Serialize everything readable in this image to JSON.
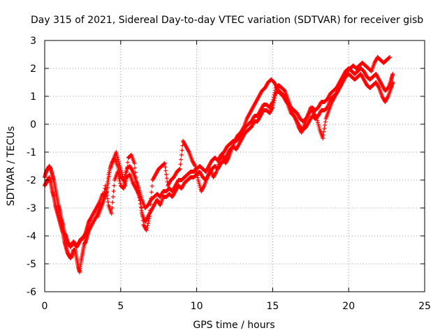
{
  "chart_data": {
    "type": "scatter",
    "title": "Day 315 of 2021, Sidereal Day-to-day VTEC variation (SDTVAR) for receiver gisb",
    "xlabel": "GPS time / hours",
    "ylabel": "SDTVAR / TECUs",
    "xlim": [
      0,
      25
    ],
    "ylim": [
      -6,
      3
    ],
    "xticks": [
      0,
      5,
      10,
      15,
      20,
      25
    ],
    "yticks": [
      -6,
      -5,
      -4,
      -3,
      -2,
      -1,
      0,
      1,
      2,
      3
    ],
    "grid": true,
    "marker": "+",
    "color": "#ff0000",
    "series": [
      {
        "x": [
          0.0,
          0.1,
          0.2,
          0.3,
          0.4,
          0.5,
          0.6,
          0.7,
          0.8,
          0.9,
          1.0,
          1.1,
          1.2,
          1.3,
          1.4,
          1.5,
          1.6,
          1.7,
          1.8,
          1.9,
          2.0,
          2.1,
          2.2,
          2.3,
          2.4,
          2.5,
          2.6,
          2.7,
          2.8,
          2.9,
          3.0,
          3.2,
          3.4,
          3.6,
          3.8,
          4.0,
          4.2,
          4.4,
          4.6,
          4.8,
          5.0,
          5.2,
          5.4,
          5.6,
          5.8,
          6.0,
          6.2,
          6.4,
          6.6,
          6.8,
          7.0,
          7.2,
          7.4,
          7.6,
          7.8,
          8.0,
          8.2,
          8.4,
          8.6,
          8.8,
          9.0,
          9.2,
          9.4,
          9.6,
          9.8,
          10.0,
          10.2,
          10.4,
          10.6,
          10.8,
          11.0,
          11.2,
          11.4,
          11.6,
          11.8,
          12.0,
          12.2,
          12.4,
          12.6,
          12.8,
          13.0,
          13.2,
          13.4,
          13.6,
          13.8,
          14.0,
          14.2,
          14.4,
          14.6,
          14.8,
          15.0,
          15.2,
          15.4,
          15.6,
          15.8,
          16.0,
          16.2,
          16.4,
          16.6,
          16.8,
          17.0,
          17.2,
          17.4,
          17.6,
          17.8,
          18.0,
          18.2,
          18.4,
          18.6,
          18.8,
          19.0,
          19.2,
          19.4,
          19.6,
          19.8,
          20.0,
          20.2,
          20.4,
          20.6,
          20.8,
          21.0,
          21.2,
          21.4,
          21.6,
          21.8,
          22.0,
          22.2,
          22.4,
          22.6,
          22.8,
          22.9
        ],
        "y": [
          -1.9,
          -1.7,
          -1.6,
          -1.5,
          -1.6,
          -1.8,
          -2.0,
          -2.3,
          -2.6,
          -2.9,
          -3.1,
          -3.4,
          -3.6,
          -3.9,
          -4.0,
          -4.2,
          -4.3,
          -4.4,
          -4.3,
          -4.2,
          -4.3,
          -4.4,
          -4.3,
          -4.2,
          -4.1,
          -4.1,
          -4.0,
          -3.9,
          -3.7,
          -3.5,
          -3.4,
          -3.2,
          -3.0,
          -2.8,
          -2.5,
          -2.6,
          -1.8,
          -1.4,
          -1.2,
          -1.5,
          -1.9,
          -2.0,
          -1.6,
          -1.5,
          -1.7,
          -2.0,
          -2.3,
          -2.7,
          -3.0,
          -2.9,
          -2.7,
          -2.6,
          -2.5,
          -2.6,
          -2.4,
          -2.4,
          -2.3,
          -2.4,
          -2.2,
          -2.0,
          -2.0,
          -1.9,
          -1.8,
          -1.7,
          -1.7,
          -1.6,
          -1.5,
          -1.6,
          -1.7,
          -1.5,
          -1.3,
          -1.2,
          -1.3,
          -1.1,
          -1.0,
          -0.8,
          -0.7,
          -0.6,
          -0.6,
          -0.5,
          -0.3,
          -0.1,
          0.0,
          0.1,
          0.3,
          0.3,
          0.5,
          0.7,
          0.7,
          0.6,
          0.8,
          1.3,
          1.4,
          1.3,
          1.2,
          0.9,
          0.6,
          0.5,
          0.4,
          0.2,
          0.1,
          0.2,
          0.4,
          0.6,
          0.5,
          0.6,
          0.8,
          0.8,
          0.9,
          1.1,
          1.2,
          1.3,
          1.5,
          1.7,
          1.9,
          2.0,
          1.9,
          1.8,
          1.9,
          2.0,
          1.9,
          1.7,
          1.6,
          1.7,
          1.8,
          1.6,
          1.4,
          1.2,
          1.3,
          1.6,
          1.8
        ]
      },
      {
        "x": [
          0.0,
          0.1,
          0.2,
          0.3,
          0.4,
          0.5,
          0.6,
          0.7,
          0.8,
          0.9,
          1.0,
          1.1,
          1.2,
          1.3,
          1.4,
          1.5,
          1.6,
          1.7,
          1.8,
          1.9,
          2.0,
          2.1,
          2.2,
          2.3,
          2.4,
          2.5,
          2.6,
          2.7,
          2.8,
          2.9,
          3.0,
          3.2,
          3.4,
          3.6,
          3.8,
          4.0,
          4.2,
          4.4,
          4.6,
          4.8,
          5.0,
          5.2,
          5.4,
          5.6,
          5.8,
          6.0,
          6.2,
          6.4,
          6.6,
          6.8,
          7.0,
          7.2,
          7.4,
          7.6,
          7.8,
          8.0,
          8.2,
          8.4,
          8.6,
          8.8,
          9.0,
          9.2,
          9.4,
          9.6,
          9.8,
          10.0,
          10.2,
          10.4,
          10.6,
          10.8,
          11.0,
          11.2,
          11.4,
          11.6,
          11.8,
          12.0,
          12.2,
          12.4,
          12.6,
          12.8,
          13.0,
          13.2,
          13.4,
          13.6,
          13.8,
          14.0,
          14.2,
          14.4,
          14.6,
          14.8,
          15.0,
          15.2,
          15.4,
          15.6,
          15.8,
          16.0,
          16.2,
          16.4,
          16.6,
          16.8,
          17.0,
          17.2,
          17.4,
          17.6,
          17.8,
          18.0,
          18.2,
          18.4,
          18.6,
          18.8,
          19.0,
          19.2,
          19.4,
          19.6,
          19.8,
          20.0,
          20.2,
          20.4,
          20.6,
          20.8,
          21.0,
          21.2,
          21.4,
          21.6,
          21.8,
          22.0,
          22.2,
          22.4,
          22.6,
          22.8,
          22.9
        ],
        "y": [
          -2.2,
          -2.1,
          -2.0,
          -1.9,
          -2.1,
          -2.4,
          -2.6,
          -2.9,
          -3.1,
          -3.3,
          -3.5,
          -3.7,
          -3.9,
          -4.2,
          -4.4,
          -4.6,
          -4.7,
          -4.8,
          -4.7,
          -4.5,
          -4.5,
          -4.8,
          -5.1,
          -5.3,
          -4.9,
          -4.6,
          -4.3,
          -4.2,
          -4.0,
          -3.8,
          -3.7,
          -3.5,
          -3.3,
          -3.0,
          -2.8,
          -2.2,
          -2.9,
          -3.2,
          -2.0,
          -1.7,
          -2.2,
          -2.3,
          -1.9,
          -1.8,
          -2.1,
          -2.3,
          -2.5,
          -3.2,
          -3.5,
          -3.3,
          -3.1,
          -2.9,
          -2.7,
          -2.9,
          -2.6,
          -2.6,
          -2.5,
          -2.6,
          -2.4,
          -2.2,
          -2.3,
          -2.1,
          -2.0,
          -1.9,
          -1.9,
          -1.8,
          -1.7,
          -1.9,
          -2.0,
          -1.8,
          -1.6,
          -1.5,
          -1.6,
          -1.4,
          -1.3,
          -1.1,
          -0.9,
          -0.8,
          -0.9,
          -0.7,
          -0.5,
          -0.3,
          -0.2,
          -0.1,
          0.1,
          0.1,
          0.3,
          0.5,
          0.5,
          0.4,
          0.6,
          1.1,
          1.2,
          1.1,
          1.0,
          0.7,
          0.4,
          0.3,
          0.1,
          -0.1,
          -0.2,
          -0.1,
          0.1,
          0.3,
          0.2,
          0.3,
          0.5,
          0.5,
          0.6,
          0.9,
          1.0,
          1.1,
          1.3,
          1.5,
          1.7,
          1.8,
          1.7,
          1.6,
          1.7,
          1.8,
          1.6,
          1.4,
          1.3,
          1.4,
          1.5,
          1.3,
          1.0,
          0.8,
          1.0,
          1.3,
          1.5
        ]
      },
      {
        "x": [
          3.5,
          3.7,
          3.9,
          4.1,
          4.3,
          4.5,
          4.7,
          4.9,
          5.1,
          5.3,
          5.5,
          5.7,
          5.9,
          6.1,
          6.3,
          6.5,
          6.7,
          6.9,
          7.1,
          7.3,
          7.5,
          7.7,
          7.9,
          8.1,
          8.3,
          8.5,
          8.7,
          8.9,
          9.1,
          9.3,
          9.5,
          9.7,
          9.9,
          10.1,
          10.3,
          10.5,
          10.7,
          10.9,
          11.1,
          11.3,
          11.5,
          11.7,
          11.9,
          12.1,
          12.3,
          12.5,
          12.7,
          12.9,
          13.1,
          13.3,
          13.5,
          13.7,
          13.9,
          14.1,
          14.3,
          14.5,
          14.7,
          14.9,
          15.1,
          15.3,
          15.5,
          15.7,
          15.9,
          16.1,
          16.3,
          16.5,
          16.7,
          16.9,
          17.1,
          17.3,
          17.5,
          17.7,
          17.9,
          18.1,
          18.3,
          18.5,
          18.7,
          18.9,
          19.1,
          19.3,
          19.5,
          19.7,
          19.9,
          20.1,
          20.3,
          20.5,
          20.7,
          20.9,
          21.1,
          21.3,
          21.5,
          21.7,
          21.9,
          22.1,
          22.3,
          22.5,
          22.7
        ],
        "y": [
          -3.3,
          -3.0,
          -2.7,
          -2.4,
          -1.6,
          -1.3,
          -1.0,
          -1.4,
          -1.8,
          -2.2,
          -1.2,
          -1.1,
          -1.4,
          -2.4,
          -2.7,
          -3.6,
          -3.8,
          -3.3,
          -2.0,
          -1.8,
          -1.6,
          -1.5,
          -1.4,
          -2.2,
          -2.0,
          -1.9,
          -1.7,
          -1.6,
          -0.6,
          -0.8,
          -1.0,
          -1.3,
          -1.5,
          -2.0,
          -2.4,
          -2.2,
          -1.9,
          -1.6,
          -1.9,
          -1.7,
          -1.3,
          -1.1,
          -1.4,
          -1.2,
          -0.9,
          -0.6,
          -0.4,
          -0.3,
          -0.1,
          0.2,
          0.4,
          0.6,
          0.8,
          1.0,
          1.2,
          1.3,
          1.5,
          1.6,
          1.5,
          1.3,
          1.1,
          1.0,
          0.8,
          0.7,
          0.4,
          0.2,
          -0.1,
          -0.3,
          0.0,
          0.3,
          0.6,
          0.4,
          0.2,
          -0.2,
          -0.5,
          0.2,
          0.5,
          0.8,
          1.0,
          1.2,
          1.4,
          1.7,
          1.9,
          2.0,
          2.1,
          2.0,
          2.1,
          2.2,
          2.1,
          2.0,
          1.9,
          2.2,
          2.4,
          2.3,
          2.2,
          2.3,
          2.4
        ]
      }
    ]
  }
}
